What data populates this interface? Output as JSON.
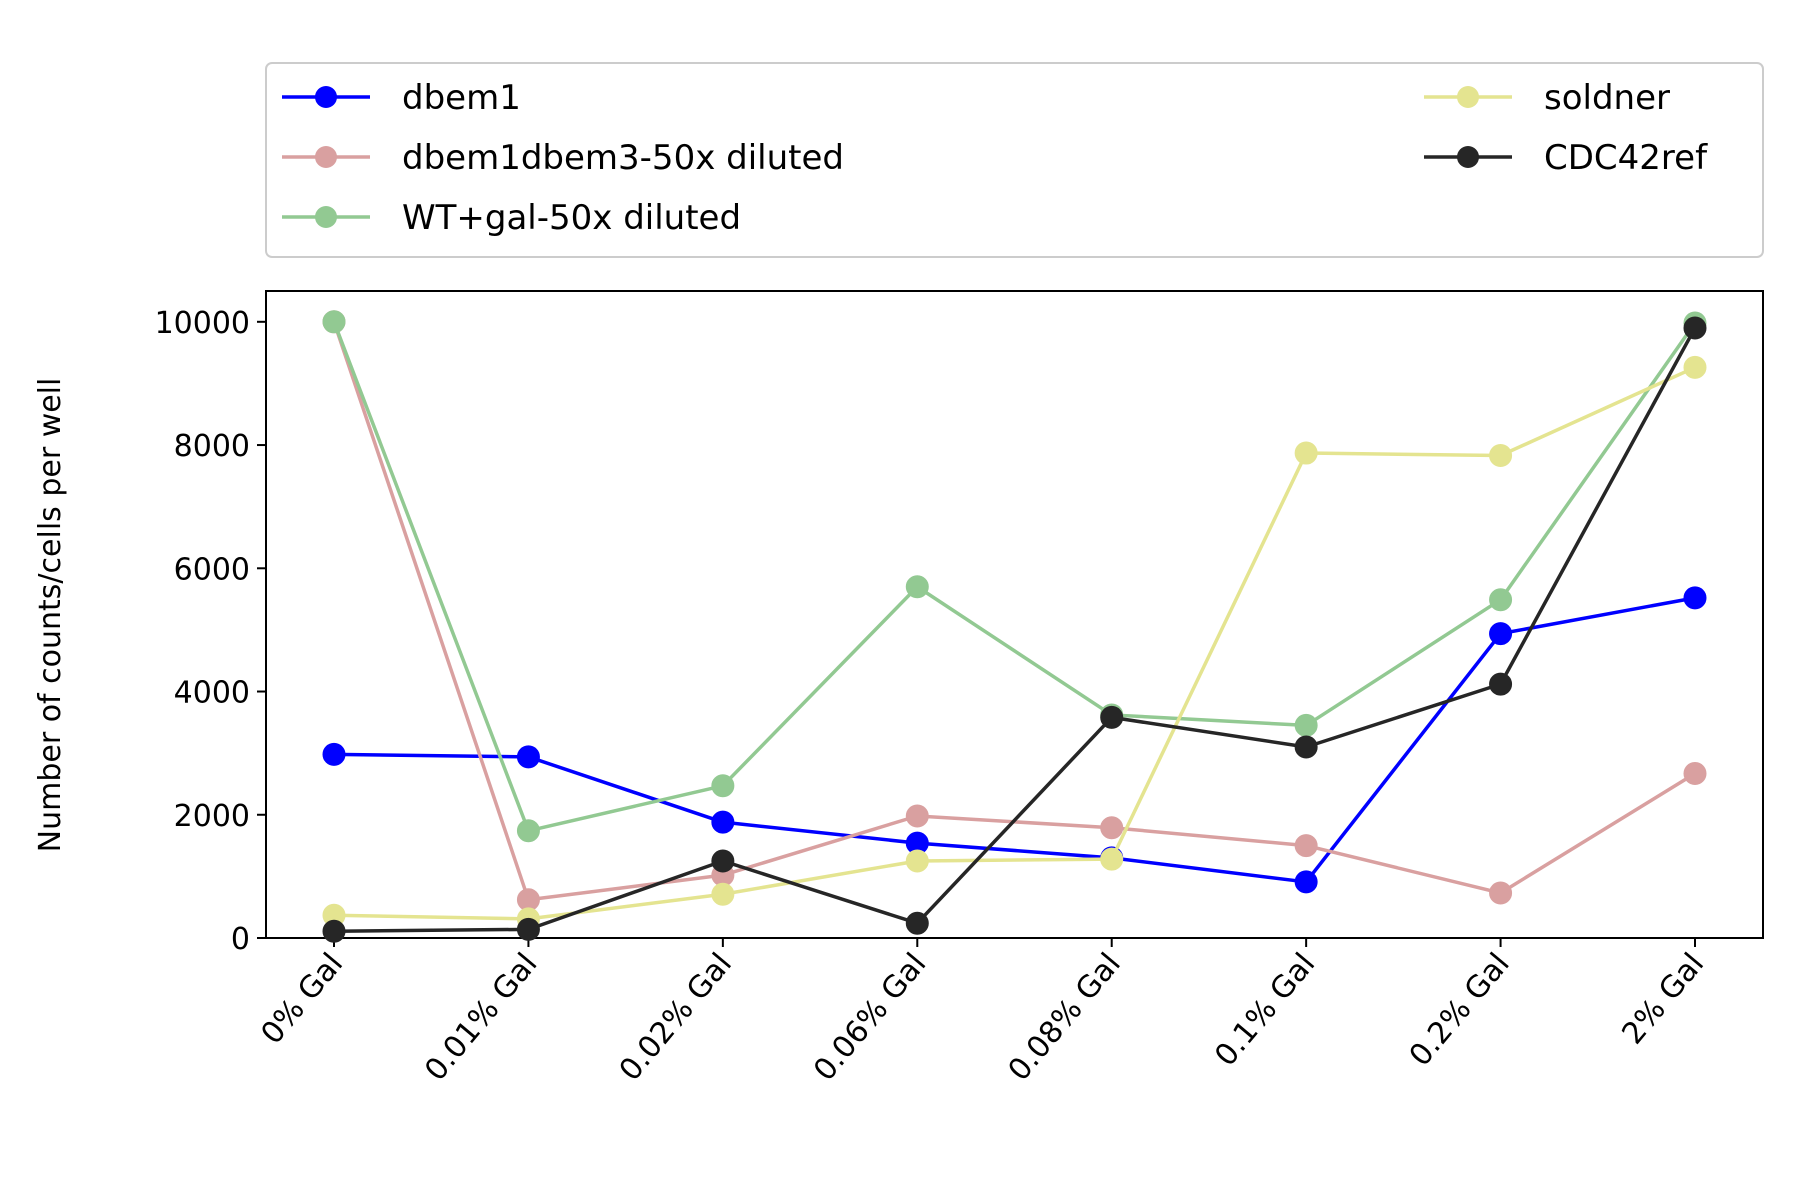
{
  "chart_data": {
    "type": "line",
    "title": "",
    "xlabel": "",
    "ylabel": "Number of counts/cells per well",
    "categories": [
      "0% Gal",
      "0.01% Gal",
      "0.02% Gal",
      "0.06% Gal",
      "0.08% Gal",
      "0.1% Gal",
      "0.2% Gal",
      "2% Gal"
    ],
    "ylim": [
      0,
      10500
    ],
    "yticks": [
      0,
      2000,
      4000,
      6000,
      8000,
      10000
    ],
    "grid": false,
    "legend_position": "top",
    "series": [
      {
        "name": "dbem1",
        "color": "#0000ff",
        "opacity": 1.0,
        "values": [
          2980,
          2940,
          1880,
          1540,
          1300,
          910,
          4940,
          5520
        ]
      },
      {
        "name": "dbem1dbem3-50x diluted",
        "color": "#d9a0a0",
        "opacity": 1.0,
        "values": [
          10000,
          620,
          1020,
          1980,
          1790,
          1500,
          730,
          2670
        ]
      },
      {
        "name": "WT+gal-50x diluted",
        "color": "#92c992",
        "opacity": 1.0,
        "values": [
          10000,
          1740,
          2470,
          5700,
          3620,
          3450,
          5490,
          9980
        ]
      },
      {
        "name": "soldner",
        "color": "#e4e490",
        "opacity": 1.0,
        "values": [
          370,
          310,
          710,
          1250,
          1280,
          7870,
          7830,
          9260
        ]
      },
      {
        "name": "CDC42ref",
        "color": "#262626",
        "opacity": 1.0,
        "values": [
          110,
          140,
          1250,
          240,
          3580,
          3100,
          4120,
          9900
        ]
      }
    ]
  }
}
